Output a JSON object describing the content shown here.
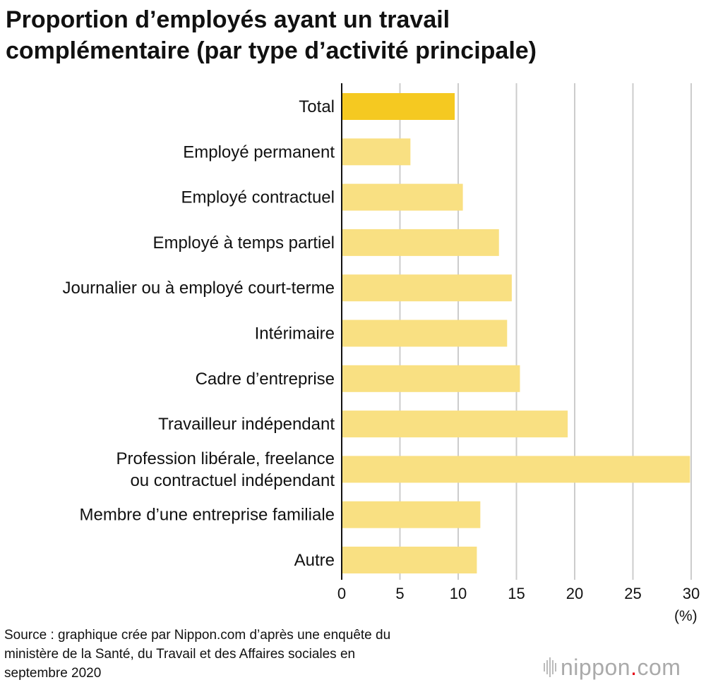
{
  "chart_data": {
    "type": "bar",
    "orientation": "horizontal",
    "title": [
      "Proportion d’employés ayant un travail",
      "complémentaire (par type d’activité principale)"
    ],
    "categories": [
      [
        "Total"
      ],
      [
        "Employé permanent"
      ],
      [
        "Employé contractuel"
      ],
      [
        "Employé à temps partiel"
      ],
      [
        "Journalier ou à employé court-terme"
      ],
      [
        "Intérimaire"
      ],
      [
        "Cadre d’entreprise"
      ],
      [
        "Travailleur indépendant"
      ],
      [
        "Profession libérale, freelance",
        "ou contractuel indépendant"
      ],
      [
        "Membre d’une entreprise familiale"
      ],
      [
        "Autre"
      ]
    ],
    "values": [
      9.7,
      5.9,
      10.4,
      13.5,
      14.6,
      14.2,
      15.3,
      19.4,
      29.9,
      11.9,
      11.6
    ],
    "highlight_index": 0,
    "xlim": [
      0,
      30
    ],
    "xticks": [
      0,
      5,
      10,
      15,
      20,
      25,
      30
    ],
    "xunit": "(%)",
    "grid": true,
    "colors": {
      "highlight": "#F5C921",
      "bar": "#F9E082",
      "grid": "#cccccc",
      "axis": "#111111"
    }
  },
  "source": [
    "Source : graphique crée par Nippon.com d’après une enquête du",
    "ministère de la Santé, du Travail et des Affaires sociales en",
    "septembre 2020"
  ],
  "logo": {
    "name": "nippon",
    "dot": ".",
    "suffix": "com"
  }
}
